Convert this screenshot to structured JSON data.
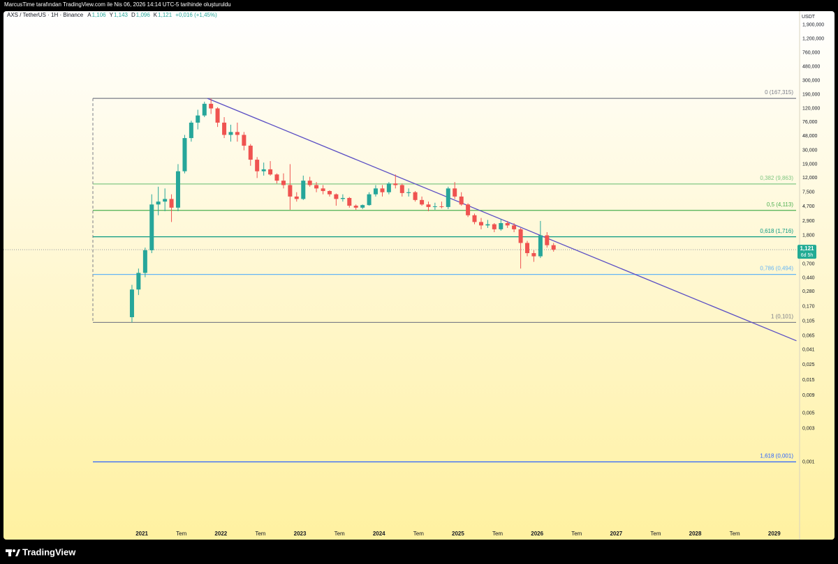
{
  "header": {
    "caption": "MarcusTime tarafından TradingView.com ile Nis 06, 2026 14:14 UTC-5 tarihinde oluşturuldu"
  },
  "chart_data": {
    "type": "candlestick",
    "symbol": "AXS / TetherUS · 1H · Binance",
    "legend": [
      {
        "key": "A",
        "value": "1,106"
      },
      {
        "key": "Y",
        "value": "1,143"
      },
      {
        "key": "D",
        "value": "1,096"
      },
      {
        "key": "K",
        "value": "1,121"
      }
    ],
    "change": "+0,016 (+1,45%)",
    "currency": "USDT",
    "log_scale": true,
    "grid": false,
    "up_color": "#26a69a",
    "down_color": "#ef5350",
    "xlim": [
      2019.25,
      2029.32
    ],
    "xticks": [
      {
        "value": 2021,
        "label": "2021"
      },
      {
        "value": 2021.5,
        "label": "Tem"
      },
      {
        "value": 2022,
        "label": "2022"
      },
      {
        "value": 2022.5,
        "label": "Tem"
      },
      {
        "value": 2023,
        "label": "2023"
      },
      {
        "value": 2023.5,
        "label": "Tem"
      },
      {
        "value": 2024,
        "label": "2024"
      },
      {
        "value": 2024.5,
        "label": "Tem"
      },
      {
        "value": 2025,
        "label": "2025"
      },
      {
        "value": 2025.5,
        "label": "Tem"
      },
      {
        "value": 2026,
        "label": "2026"
      },
      {
        "value": 2026.5,
        "label": "Tem"
      },
      {
        "value": 2027,
        "label": "2027"
      },
      {
        "value": 2027.5,
        "label": "Tem"
      },
      {
        "value": 2028,
        "label": "2028"
      },
      {
        "value": 2028.5,
        "label": "Tem"
      },
      {
        "value": 2029,
        "label": "2029"
      }
    ],
    "ylim": [
      8e-05,
      3000
    ],
    "yticks": [
      {
        "value": 1900,
        "label": "1,900,000"
      },
      {
        "value": 1200,
        "label": "1,200,000"
      },
      {
        "value": 760,
        "label": "760,000"
      },
      {
        "value": 480,
        "label": "480,000"
      },
      {
        "value": 300,
        "label": "300,000"
      },
      {
        "value": 190,
        "label": "190,000"
      },
      {
        "value": 120,
        "label": "120,000"
      },
      {
        "value": 76,
        "label": "76,000"
      },
      {
        "value": 48,
        "label": "48,000"
      },
      {
        "value": 30,
        "label": "30,000"
      },
      {
        "value": 19,
        "label": "19,000"
      },
      {
        "value": 12,
        "label": "12,000"
      },
      {
        "value": 7.5,
        "label": "7,500"
      },
      {
        "value": 4.7,
        "label": "4,700"
      },
      {
        "value": 2.9,
        "label": "2,900"
      },
      {
        "value": 1.8,
        "label": "1,800"
      },
      {
        "value": 0.7,
        "label": "0,700"
      },
      {
        "value": 0.44,
        "label": "0,440"
      },
      {
        "value": 0.28,
        "label": "0,280"
      },
      {
        "value": 0.17,
        "label": "0,170"
      },
      {
        "value": 0.105,
        "label": "0,105"
      },
      {
        "value": 0.065,
        "label": "0,065"
      },
      {
        "value": 0.041,
        "label": "0,041"
      },
      {
        "value": 0.025,
        "label": "0,025"
      },
      {
        "value": 0.015,
        "label": "0,015"
      },
      {
        "value": 0.009,
        "label": "0,009"
      },
      {
        "value": 0.005,
        "label": "0,005"
      },
      {
        "value": 0.003,
        "label": "0,003"
      },
      {
        "value": 0.001,
        "label": "0,001"
      }
    ],
    "x": [
      2020.875,
      2020.958,
      2021.042,
      2021.125,
      2021.208,
      2021.292,
      2021.375,
      2021.458,
      2021.542,
      2021.625,
      2021.708,
      2021.792,
      2021.875,
      2021.958,
      2022.042,
      2022.125,
      2022.208,
      2022.292,
      2022.375,
      2022.458,
      2022.542,
      2022.625,
      2022.708,
      2022.792,
      2022.875,
      2022.958,
      2023.042,
      2023.125,
      2023.208,
      2023.292,
      2023.375,
      2023.458,
      2023.542,
      2023.625,
      2023.708,
      2023.792,
      2023.875,
      2023.958,
      2024.042,
      2024.125,
      2024.208,
      2024.292,
      2024.375,
      2024.458,
      2024.542,
      2024.625,
      2024.708,
      2024.792,
      2024.875,
      2024.958,
      2025.042,
      2025.125,
      2025.208,
      2025.292,
      2025.375,
      2025.458,
      2025.542,
      2025.625,
      2025.708,
      2025.792,
      2025.875,
      2025.958,
      2026.042,
      2026.125,
      2026.208
    ],
    "open": [
      0.12,
      0.3,
      0.52,
      1.1,
      5.0,
      5.5,
      6.0,
      4.5,
      15,
      45,
      75,
      95,
      140,
      120,
      75,
      50,
      55,
      50,
      35,
      22,
      15,
      16,
      13.5,
      11,
      9.5,
      6.5,
      6.0,
      11,
      9.5,
      8.5,
      7.8,
      7.0,
      6.0,
      6.2,
      4.8,
      4.5,
      4.9,
      7.0,
      8.5,
      7.5,
      10,
      9.5,
      7.3,
      7.5,
      5.8,
      5.0,
      4.6,
      4.7,
      4.6,
      8.5,
      6.5,
      5.0,
      3.5,
      2.8,
      2.5,
      2.6,
      2.2,
      2.7,
      2.5,
      2.2,
      1.4,
      1.0,
      0.9,
      1.8,
      1.3
    ],
    "high": [
      0.35,
      0.6,
      1.2,
      7.0,
      9.0,
      8.5,
      7.0,
      19,
      50,
      80,
      115,
      150,
      167.3,
      125,
      90,
      70,
      75,
      55,
      37,
      24,
      20,
      21,
      14,
      14,
      19,
      7.5,
      13,
      12.5,
      10.5,
      9.5,
      8.0,
      7.2,
      7.0,
      6.4,
      5.0,
      5.0,
      7.5,
      9.5,
      9.5,
      10.5,
      13.5,
      10,
      8.5,
      7.8,
      6.5,
      5.5,
      5.3,
      5.5,
      9.0,
      10.5,
      7.5,
      5.2,
      3.7,
      3.2,
      3.0,
      2.7,
      3.1,
      2.9,
      2.7,
      2.3,
      1.5,
      1.1,
      2.9,
      2.0,
      1.4
    ],
    "low": [
      0.101,
      0.25,
      0.45,
      1.0,
      3.5,
      4.0,
      2.8,
      4.0,
      14,
      40,
      60,
      90,
      100,
      65,
      45,
      40,
      40,
      30,
      18,
      12,
      13,
      13,
      10,
      8.5,
      4.2,
      5.5,
      5.8,
      9,
      7.5,
      7,
      6.5,
      4.8,
      5.5,
      4.5,
      4.2,
      4.3,
      4.8,
      6.5,
      6.5,
      7.0,
      8.5,
      6.5,
      6.5,
      5.5,
      4.8,
      4.0,
      4.2,
      4.4,
      4.3,
      6.0,
      4.8,
      3.3,
      2.6,
      2.2,
      2.3,
      2.0,
      2.1,
      2.3,
      2.0,
      0.6,
      0.9,
      0.75,
      0.85,
      1.2,
      1.05
    ],
    "close": [
      0.3,
      0.52,
      1.1,
      5.0,
      5.5,
      6.0,
      4.5,
      15,
      45,
      75,
      95,
      140,
      120,
      75,
      50,
      55,
      50,
      35,
      22,
      15,
      16,
      13.5,
      11,
      9.5,
      6.5,
      6.0,
      11,
      9.5,
      8.5,
      7.8,
      7.0,
      6.0,
      6.2,
      4.8,
      4.5,
      4.9,
      7.0,
      8.5,
      7.5,
      10,
      9.5,
      7.3,
      7.5,
      5.8,
      5.0,
      4.6,
      4.7,
      4.6,
      8.5,
      6.5,
      5.0,
      3.5,
      2.8,
      2.5,
      2.6,
      2.2,
      2.7,
      2.5,
      2.2,
      1.4,
      1.0,
      0.9,
      1.8,
      1.3,
      1.12
    ],
    "fib_levels": [
      {
        "label": "0 (167,315)",
        "value": 167.315,
        "color": "#787b86"
      },
      {
        "label": "0,382 (9,863)",
        "value": 9.863,
        "color": "#81c784"
      },
      {
        "label": "0,5 (4,113)",
        "value": 4.113,
        "color": "#4caf50"
      },
      {
        "label": "0,618 (1,716)",
        "value": 1.716,
        "color": "#089981"
      },
      {
        "label": "0,786 (0,494)",
        "value": 0.494,
        "color": "#64b5f6"
      },
      {
        "label": "1 (0,101)",
        "value": 0.101,
        "color": "#787b86"
      },
      {
        "label": "1,618 (0,001)",
        "value": 0.001,
        "color": "#2962ff"
      }
    ],
    "trendline": {
      "x": [
        2021.83,
        2029.28
      ],
      "values": [
        167.315,
        0.055
      ],
      "color": "#5b4fc4"
    },
    "last_price": {
      "value": 1.121,
      "label": "1,121",
      "countdown": "6d 5h",
      "color": "#22ab94"
    }
  },
  "footer": {
    "brand": "TradingView"
  }
}
